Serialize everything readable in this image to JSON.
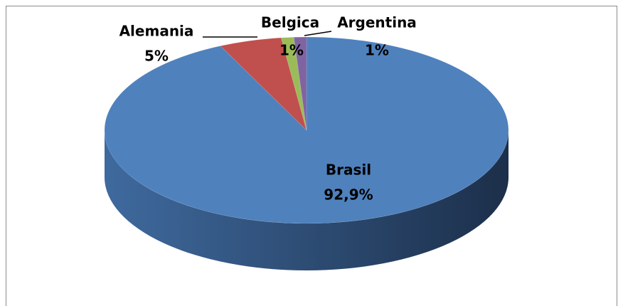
{
  "chart_data": {
    "type": "pie",
    "categories": [
      "Brasil",
      "Alemania",
      "Belgica",
      "Argentina"
    ],
    "values": [
      92.9,
      5,
      1,
      1
    ],
    "value_labels": [
      "92,9%",
      "5%",
      "1%",
      "1%"
    ],
    "colors": [
      "#4f81bd",
      "#c0504d",
      "#9bbb59",
      "#8064a2"
    ]
  }
}
